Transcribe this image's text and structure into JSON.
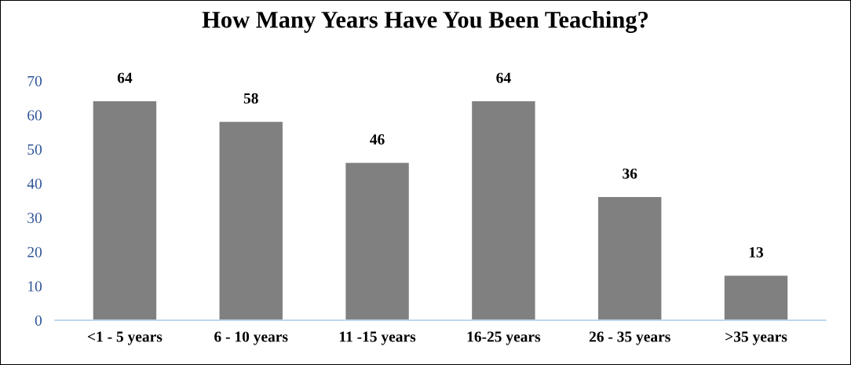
{
  "chart_data": {
    "type": "bar",
    "title": "How Many Years Have You Been Teaching?",
    "categories": [
      "<1 - 5 years",
      "6 - 10 years",
      "11 -15 years",
      "16-25 years",
      "26 - 35 years",
      ">35 years"
    ],
    "values": [
      64,
      58,
      46,
      64,
      36,
      13
    ],
    "color": "#808080",
    "ylim": [
      0,
      70
    ],
    "yticks": [
      0,
      10,
      20,
      30,
      40,
      50,
      60,
      70
    ],
    "grid": false,
    "data_labels": true,
    "legend": false
  }
}
